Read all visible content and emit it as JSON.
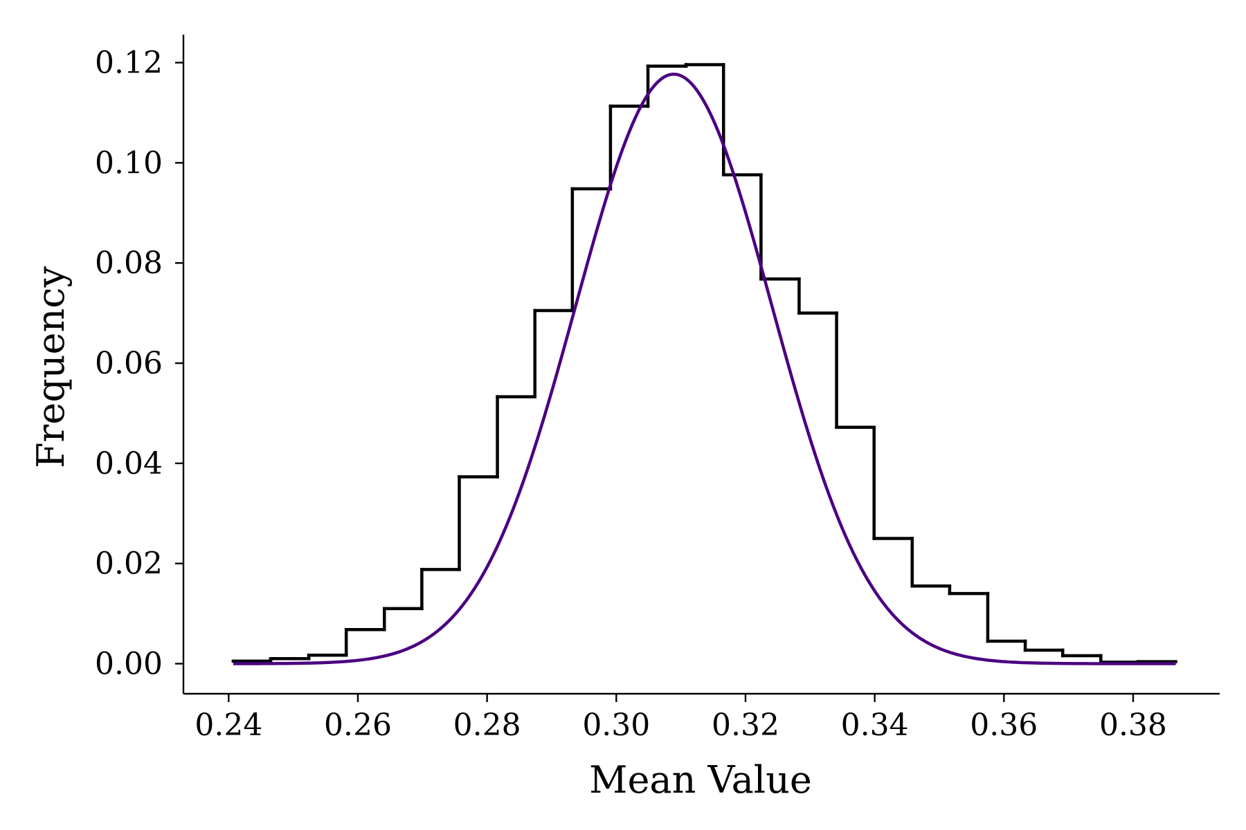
{
  "chart_data": {
    "type": "histogram-step-with-curve",
    "xlabel": "Mean Value",
    "ylabel": "Frequency",
    "xlim": [
      0.233,
      0.3934
    ],
    "ylim": [
      -0.006,
      0.1256
    ],
    "xticks": [
      0.24,
      0.26,
      0.28,
      0.3,
      0.32,
      0.34,
      0.36,
      0.38
    ],
    "xtick_labels": [
      "0.24",
      "0.26",
      "0.28",
      "0.30",
      "0.32",
      "0.34",
      "0.36",
      "0.38"
    ],
    "yticks": [
      0.0,
      0.02,
      0.04,
      0.06,
      0.08,
      0.1,
      0.12
    ],
    "ytick_labels": [
      "0.00",
      "0.02",
      "0.04",
      "0.06",
      "0.08",
      "0.10",
      "0.12"
    ],
    "grid": false,
    "spines": "left-bottom",
    "histogram": {
      "color": "#000000",
      "bin_edges": [
        0.2407,
        0.2465,
        0.2524,
        0.2582,
        0.2641,
        0.2699,
        0.2757,
        0.2816,
        0.2874,
        0.2932,
        0.2991,
        0.3049,
        0.3108,
        0.3166,
        0.3224,
        0.3283,
        0.3341,
        0.3399,
        0.3458,
        0.3516,
        0.3575,
        0.3633,
        0.3691,
        0.375,
        0.3808,
        0.3866
      ],
      "values": [
        0.0005,
        0.001,
        0.0017,
        0.0068,
        0.011,
        0.0188,
        0.0373,
        0.0533,
        0.0705,
        0.0948,
        0.1113,
        0.1193,
        0.1196,
        0.0976,
        0.0768,
        0.07,
        0.0472,
        0.025,
        0.0155,
        0.014,
        0.0045,
        0.0027,
        0.0016,
        0.0003,
        0.0004
      ]
    },
    "fit_curve": {
      "type": "normal",
      "color": "#4b0082",
      "mean": 0.3089,
      "peak": 0.1177,
      "sd": 0.0152,
      "x_range": [
        0.2407,
        0.3866
      ]
    }
  }
}
